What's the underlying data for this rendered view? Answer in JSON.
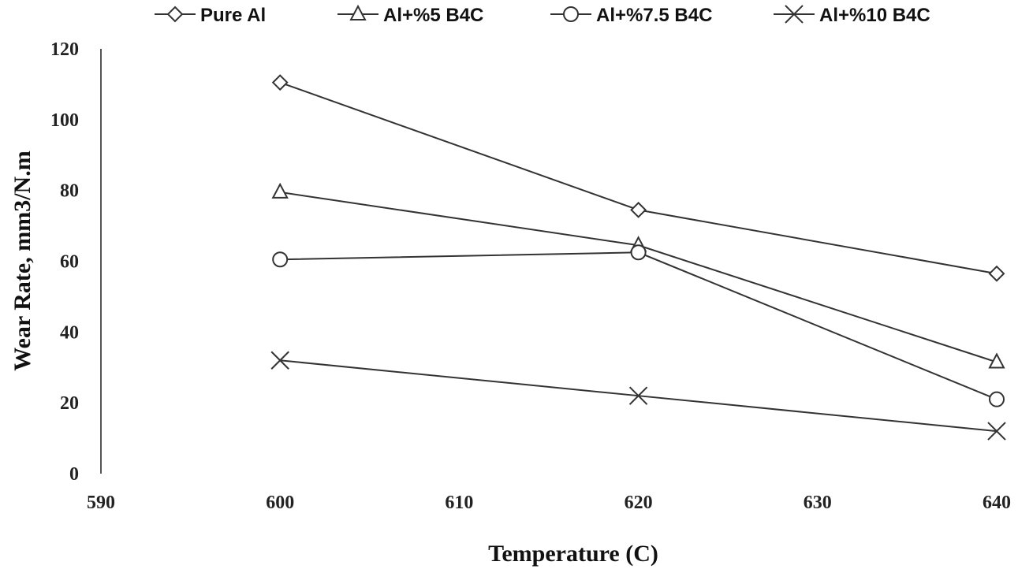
{
  "chart_data": {
    "type": "line",
    "xlabel": "Temperature (C)",
    "ylabel": "Wear Rate, mm3/N.m",
    "xlim": [
      590,
      640
    ],
    "ylim": [
      0,
      120
    ],
    "x_ticks": [
      "590",
      "600",
      "610",
      "620",
      "630",
      "640"
    ],
    "y_ticks": [
      "0",
      "20",
      "40",
      "60",
      "80",
      "100",
      "120"
    ],
    "grid": false,
    "legend_position": "top",
    "x": [
      600,
      620,
      640
    ],
    "series": [
      {
        "name": "Pure Al",
        "marker": "diamond",
        "values": [
          110.5,
          74.5,
          56.5
        ]
      },
      {
        "name": "Al+%5 B4C",
        "marker": "triangle",
        "values": [
          79.5,
          64.5,
          31.5
        ]
      },
      {
        "name": "Al+%7.5 B4C",
        "marker": "circle",
        "values": [
          60.5,
          62.5,
          21
        ]
      },
      {
        "name": "Al+%10 B4C",
        "marker": "x",
        "values": [
          32,
          22,
          12
        ]
      }
    ],
    "line_color": "#333333"
  }
}
